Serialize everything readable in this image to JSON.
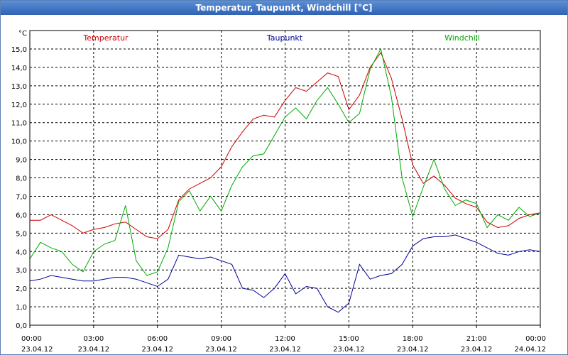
{
  "window": {
    "title": "Temperatur, Taupunkt, Windchill [°C]"
  },
  "chart_data": {
    "type": "line",
    "title": "Temperatur, Taupunkt, Windchill [°C]",
    "ylabel": "°C",
    "ylim": [
      0,
      16
    ],
    "xlim": [
      0,
      24
    ],
    "grid": true,
    "yticks": [
      "0,0",
      "1,0",
      "2,0",
      "3,0",
      "4,0",
      "5,0",
      "6,0",
      "7,0",
      "8,0",
      "9,0",
      "10,0",
      "11,0",
      "12,0",
      "13,0",
      "14,0",
      "15,0"
    ],
    "xticks": [
      {
        "time": "00:00",
        "date": "23.04.12"
      },
      {
        "time": "03:00",
        "date": "23.04.12"
      },
      {
        "time": "06:00",
        "date": "23.04.12"
      },
      {
        "time": "09:00",
        "date": "23.04.12"
      },
      {
        "time": "12:00",
        "date": "23.04.12"
      },
      {
        "time": "15:00",
        "date": "23.04.12"
      },
      {
        "time": "18:00",
        "date": "23.04.12"
      },
      {
        "time": "21:00",
        "date": "23.04.12"
      },
      {
        "time": "00:00",
        "date": "24.04.12"
      }
    ],
    "series": [
      {
        "name": "Temperatur",
        "color": "#cc0000",
        "x": [
          0,
          0.5,
          1,
          1.5,
          2,
          2.5,
          3,
          3.5,
          4,
          4.5,
          5,
          5.5,
          6,
          6.5,
          7,
          7.5,
          8,
          8.5,
          9,
          9.5,
          10,
          10.5,
          11,
          11.5,
          12,
          12.5,
          13,
          13.5,
          14,
          14.5,
          15,
          15.5,
          16,
          16.5,
          17,
          17.5,
          18,
          18.5,
          19,
          19.5,
          20,
          20.5,
          21,
          21.5,
          22,
          22.5,
          23,
          23.5,
          24
        ],
        "values": [
          5.7,
          5.7,
          6.0,
          5.7,
          5.4,
          5.0,
          5.2,
          5.3,
          5.5,
          5.6,
          5.2,
          4.8,
          4.7,
          5.2,
          6.8,
          7.4,
          7.7,
          8.0,
          8.6,
          9.7,
          10.5,
          11.2,
          11.4,
          11.3,
          12.2,
          12.9,
          12.7,
          13.2,
          13.7,
          13.5,
          11.7,
          12.5,
          14.0,
          14.8,
          13.4,
          11.2,
          8.7,
          7.7,
          8.1,
          7.6,
          6.9,
          6.6,
          6.4,
          5.6,
          5.3,
          5.4,
          5.8,
          6.0,
          6.1
        ]
      },
      {
        "name": "Taupunkt",
        "color": "#000099",
        "x": [
          0,
          0.5,
          1,
          1.5,
          2,
          2.5,
          3,
          3.5,
          4,
          4.5,
          5,
          5.5,
          6,
          6.5,
          7,
          7.5,
          8,
          8.5,
          9,
          9.5,
          10,
          10.5,
          11,
          11.5,
          12,
          12.5,
          13,
          13.5,
          14,
          14.5,
          15,
          15.5,
          16,
          16.5,
          17,
          17.5,
          18,
          18.5,
          19,
          19.5,
          20,
          20.5,
          21,
          21.5,
          22,
          22.5,
          23,
          23.5,
          24
        ],
        "values": [
          2.4,
          2.5,
          2.7,
          2.6,
          2.5,
          2.4,
          2.4,
          2.5,
          2.6,
          2.6,
          2.5,
          2.3,
          2.1,
          2.5,
          3.8,
          3.7,
          3.6,
          3.7,
          3.5,
          3.3,
          2.0,
          1.9,
          1.5,
          2.0,
          2.8,
          1.7,
          2.1,
          2.0,
          1.0,
          0.7,
          1.2,
          3.3,
          2.5,
          2.7,
          2.8,
          3.3,
          4.3,
          4.7,
          4.8,
          4.8,
          4.9,
          4.7,
          4.5,
          4.2,
          3.9,
          3.8,
          4.0,
          4.1,
          4.0
        ]
      },
      {
        "name": "Windchill",
        "color": "#00aa00",
        "x": [
          0,
          0.5,
          1,
          1.5,
          2,
          2.5,
          3,
          3.5,
          4,
          4.5,
          5,
          5.5,
          6,
          6.5,
          7,
          7.5,
          8,
          8.5,
          9,
          9.5,
          10,
          10.5,
          11,
          11.5,
          12,
          12.5,
          13,
          13.5,
          14,
          14.5,
          15,
          15.5,
          16,
          16.5,
          17,
          17.5,
          18,
          18.5,
          19,
          19.5,
          20,
          20.5,
          21,
          21.5,
          22,
          22.5,
          23,
          23.5,
          24
        ],
        "values": [
          3.6,
          4.5,
          4.2,
          4.0,
          3.3,
          2.9,
          4.0,
          4.4,
          4.6,
          6.5,
          3.5,
          2.7,
          2.9,
          4.2,
          6.7,
          7.3,
          6.2,
          7.0,
          6.2,
          7.6,
          8.6,
          9.2,
          9.3,
          10.3,
          11.3,
          11.8,
          11.2,
          12.2,
          12.9,
          12.0,
          11.0,
          11.5,
          13.9,
          15.0,
          12.4,
          8.0,
          5.9,
          7.5,
          9.0,
          7.4,
          6.5,
          6.8,
          6.6,
          5.3,
          6.0,
          5.7,
          6.4,
          5.9,
          6.1
        ]
      }
    ]
  }
}
